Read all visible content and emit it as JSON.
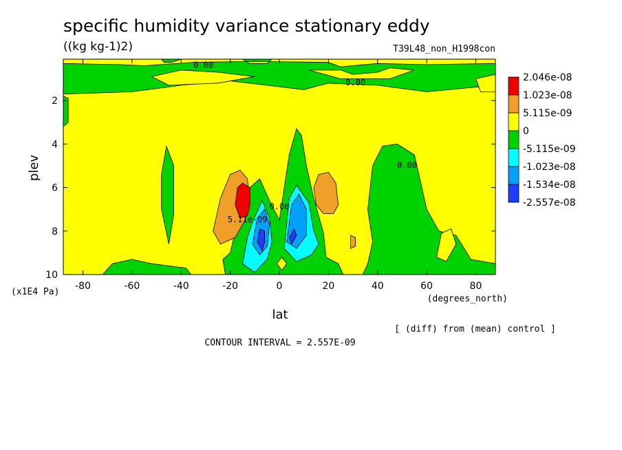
{
  "chart_data": {
    "type": "contour",
    "title": "specific humidity variance stationary eddy",
    "units": "((kg kg-1)2)",
    "experiment": "T39L48_non_H1998con",
    "xlabel": "lat",
    "xunits": "(degrees_north)",
    "ylabel": "plev",
    "yunits": "(x1E4 Pa)",
    "diff_note": "[ (diff) from (mean) control ]",
    "contour_interval": "CONTOUR INTERVAL = 2.557E-09",
    "xlim": [
      -88,
      88
    ],
    "ylim": [
      10,
      0.1
    ],
    "x_ticks": [
      "-80",
      "-60",
      "-40",
      "-20",
      "0",
      "20",
      "40",
      "60",
      "80"
    ],
    "x_tick_values": [
      -80,
      -60,
      -40,
      -20,
      0,
      20,
      40,
      60,
      80
    ],
    "y_ticks": [
      "2",
      "4",
      "6",
      "8",
      "10"
    ],
    "y_tick_values": [
      2,
      4,
      6,
      8,
      10
    ],
    "legend": [
      {
        "label": "2.046e-08",
        "color": "#f00000"
      },
      {
        "label": "1.023e-08",
        "color": "#f0a028"
      },
      {
        "label": "5.115e-09",
        "color": "#ffff00"
      },
      {
        "label": "0",
        "color": "#00d200"
      },
      {
        "label": "-5.115e-09",
        "color": "#00ffff"
      },
      {
        "label": "-1.023e-08",
        "color": "#00a0ff"
      },
      {
        "label": "-1.534e-08",
        "color": "#1e3cff"
      },
      {
        "label": "-2.557e-08",
        "color": ""
      }
    ],
    "contour_labels": [
      {
        "text": "0.00",
        "lat": -31,
        "plev": 0.5
      },
      {
        "text": "0.00",
        "lat": 31,
        "plev": 1.3
      },
      {
        "text": "0.00",
        "lat": 52,
        "plev": 5.1
      },
      {
        "text": "0.00",
        "lat": 0,
        "plev": 7.0
      },
      {
        "text": "5.11e-09",
        "lat": -13,
        "plev": 7.6
      }
    ],
    "regions": [
      {
        "level": "positive_low",
        "color": "#00d200",
        "poly": [
          [
            -88,
            0.1
          ],
          [
            88,
            0.1
          ],
          [
            88,
            1.3
          ],
          [
            60,
            1.6
          ],
          [
            40,
            1.3
          ],
          [
            20,
            1.2
          ],
          [
            10,
            1.5
          ],
          [
            -20,
            1.1
          ],
          [
            -40,
            1.3
          ],
          [
            -60,
            1.6
          ],
          [
            -88,
            1.7
          ]
        ],
        "note": "top band"
      },
      {
        "level": "band_base",
        "color": "#ffff00",
        "poly": [
          [
            -88,
            0.1
          ],
          [
            -48,
            0.1
          ],
          [
            -47,
            0.25
          ],
          [
            -44,
            0.25
          ],
          [
            -40,
            0.1
          ],
          [
            -15,
            0.1
          ],
          [
            -12,
            0.3
          ],
          [
            -5,
            0.3
          ],
          [
            -3,
            0.1
          ],
          [
            88,
            0.1
          ],
          [
            88,
            0.3
          ],
          [
            60,
            0.35
          ],
          [
            40,
            0.3
          ],
          [
            25,
            0.45
          ],
          [
            20,
            0.25
          ],
          [
            -10,
            0.2
          ],
          [
            -35,
            0.25
          ],
          [
            -55,
            0.4
          ],
          [
            -65,
            0.35
          ],
          [
            -88,
            0.3
          ]
        ]
      },
      {
        "level": "top_notch_1",
        "color": "#ffff00",
        "poly": [
          [
            -52,
            0.9
          ],
          [
            -40,
            0.6
          ],
          [
            -25,
            0.7
          ],
          [
            -10,
            0.9
          ],
          [
            -25,
            1.2
          ],
          [
            -45,
            1.3
          ]
        ]
      },
      {
        "level": "top_notch_2",
        "color": "#ffff00",
        "poly": [
          [
            12,
            0.6
          ],
          [
            25,
            0.6
          ],
          [
            30,
            0.8
          ],
          [
            40,
            0.7
          ],
          [
            45,
            0.5
          ],
          [
            55,
            0.6
          ],
          [
            45,
            1.0
          ],
          [
            25,
            1.0
          ]
        ]
      },
      {
        "level": "top_notch_3",
        "color": "#ffff00",
        "poly": [
          [
            80,
            1.0
          ],
          [
            88,
            0.8
          ],
          [
            88,
            1.6
          ],
          [
            82,
            1.6
          ]
        ]
      },
      {
        "level": "left_strip",
        "color": "#00d200",
        "poly": [
          [
            -88,
            1.8
          ],
          [
            -86,
            1.9
          ],
          [
            -86,
            3.0
          ],
          [
            -88,
            3.2
          ]
        ]
      },
      {
        "level": "nh_green",
        "color": "#00d200",
        "poly": [
          [
            38,
            5.0
          ],
          [
            42,
            4.1
          ],
          [
            48,
            4.0
          ],
          [
            55,
            4.5
          ],
          [
            58,
            6.0
          ],
          [
            60,
            7.0
          ],
          [
            65,
            8.0
          ],
          [
            72,
            8.2
          ],
          [
            78,
            9.3
          ],
          [
            88,
            9.5
          ],
          [
            88,
            10
          ],
          [
            34,
            10
          ],
          [
            36,
            9.5
          ],
          [
            38,
            8.5
          ],
          [
            36,
            7.0
          ]
        ]
      },
      {
        "level": "nh_notch",
        "color": "#ffff00",
        "poly": [
          [
            66,
            8.1
          ],
          [
            70,
            7.9
          ],
          [
            72,
            8.6
          ],
          [
            68,
            9.4
          ],
          [
            64,
            9.2
          ]
        ]
      },
      {
        "level": "sh_strip",
        "color": "#00d200",
        "poly": [
          [
            -48,
            5.4
          ],
          [
            -46,
            4.1
          ],
          [
            -43,
            5.0
          ],
          [
            -43,
            7.2
          ],
          [
            -45,
            8.6
          ],
          [
            -48,
            7.0
          ]
        ]
      },
      {
        "level": "center_green",
        "color": "#00d200",
        "poly": [
          [
            -22,
            10
          ],
          [
            -23,
            9.3
          ],
          [
            -20,
            9.0
          ],
          [
            -14,
            6.2
          ],
          [
            -8,
            5.6
          ],
          [
            -4,
            6.6
          ],
          [
            0,
            7.5
          ],
          [
            4,
            4.5
          ],
          [
            7,
            3.3
          ],
          [
            9,
            3.6
          ],
          [
            11,
            5.0
          ],
          [
            14,
            6.5
          ],
          [
            18,
            8.1
          ],
          [
            19,
            9.2
          ],
          [
            24,
            9.5
          ],
          [
            26,
            10
          ]
        ]
      },
      {
        "level": "cyan_left",
        "color": "#00ffff",
        "poly": [
          [
            -15,
            9.5
          ],
          [
            -13,
            8.3
          ],
          [
            -11,
            7.6
          ],
          [
            -7,
            6.6
          ],
          [
            -4,
            7.4
          ],
          [
            -3,
            8.5
          ],
          [
            -5,
            9.3
          ],
          [
            -10,
            9.9
          ]
        ]
      },
      {
        "level": "cyan_right",
        "color": "#00ffff",
        "poly": [
          [
            2,
            8.8
          ],
          [
            4,
            6.5
          ],
          [
            7,
            5.9
          ],
          [
            12,
            6.7
          ],
          [
            14,
            8.0
          ],
          [
            16,
            8.6
          ],
          [
            13,
            9.1
          ],
          [
            7,
            9.4
          ]
        ]
      },
      {
        "level": "blue_left",
        "color": "#00a0ff",
        "poly": [
          [
            -11,
            8.6
          ],
          [
            -9,
            7.4
          ],
          [
            -6,
            7.0
          ],
          [
            -4,
            7.7
          ],
          [
            -5,
            8.7
          ],
          [
            -8,
            9.1
          ]
        ]
      },
      {
        "level": "blue_right",
        "color": "#00a0ff",
        "poly": [
          [
            3,
            8.5
          ],
          [
            5,
            6.8
          ],
          [
            8,
            6.3
          ],
          [
            11,
            7.0
          ],
          [
            11,
            8.2
          ],
          [
            7,
            8.8
          ]
        ]
      },
      {
        "level": "dark_left",
        "color": "#1e3cff",
        "poly": [
          [
            -9,
            8.5
          ],
          [
            -8,
            7.9
          ],
          [
            -6,
            8.0
          ],
          [
            -6,
            8.5
          ],
          [
            -7,
            8.9
          ]
        ]
      },
      {
        "level": "dark_right",
        "color": "#1e3cff",
        "poly": [
          [
            4,
            8.3
          ],
          [
            6,
            7.9
          ],
          [
            7,
            8.2
          ],
          [
            5,
            8.6
          ]
        ]
      },
      {
        "level": "orange_left",
        "color": "#f0a028",
        "poly": [
          [
            -27,
            8.0
          ],
          [
            -24,
            6.5
          ],
          [
            -20,
            5.4
          ],
          [
            -16,
            5.2
          ],
          [
            -13,
            5.6
          ],
          [
            -12,
            6.6
          ],
          [
            -14,
            7.5
          ],
          [
            -18,
            8.3
          ],
          [
            -24,
            8.6
          ]
        ]
      },
      {
        "level": "orange_right",
        "color": "#f0a028",
        "poly": [
          [
            14,
            6.0
          ],
          [
            16,
            5.4
          ],
          [
            20,
            5.3
          ],
          [
            23,
            5.8
          ],
          [
            24,
            6.8
          ],
          [
            22,
            7.2
          ],
          [
            18,
            7.2
          ],
          [
            15,
            6.8
          ]
        ]
      },
      {
        "level": "orange_dot",
        "color": "#f0a028",
        "poly": [
          [
            29,
            8.2
          ],
          [
            31,
            8.3
          ],
          [
            31,
            8.7
          ],
          [
            29,
            8.8
          ]
        ]
      },
      {
        "level": "red_core",
        "color": "#f00000",
        "poly": [
          [
            -18,
            6.8
          ],
          [
            -17,
            6.0
          ],
          [
            -15,
            5.8
          ],
          [
            -12,
            6.0
          ],
          [
            -12,
            6.8
          ],
          [
            -13,
            7.3
          ],
          [
            -16,
            7.4
          ]
        ]
      },
      {
        "level": "green_notch",
        "color": "#00d200",
        "poly": [
          [
            -68,
            9.5
          ],
          [
            -60,
            9.3
          ],
          [
            -52,
            9.5
          ],
          [
            -45,
            9.6
          ],
          [
            -38,
            9.7
          ],
          [
            -36,
            10
          ],
          [
            -72,
            10
          ]
        ]
      },
      {
        "level": "yellow_hole",
        "color": "#ffff00",
        "poly": [
          [
            -1,
            9.5
          ],
          [
            1,
            9.2
          ],
          [
            3,
            9.5
          ],
          [
            1,
            9.8
          ]
        ]
      }
    ]
  }
}
